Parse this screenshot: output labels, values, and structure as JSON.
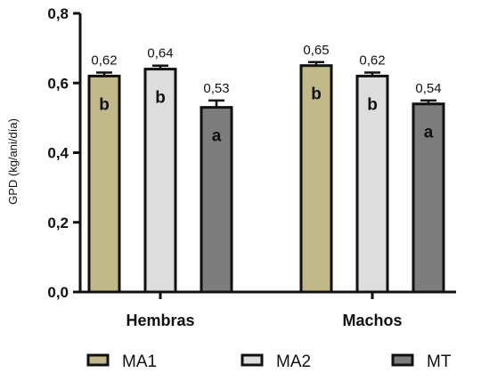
{
  "chart_data": {
    "type": "bar",
    "ylabel": "GPD (kg/ani/día)",
    "xlabel": "",
    "ylim": [
      0,
      0.8
    ],
    "yticks": [
      0,
      0.2,
      0.4,
      0.6,
      0.8
    ],
    "ytick_labels": [
      "0,0",
      "0,2",
      "0,4",
      "0,6",
      "0,8"
    ],
    "categories": [
      "Hembras",
      "Machos"
    ],
    "legend_position": "bottom",
    "grid": false,
    "series": [
      {
        "name": "MA1",
        "color": "#c2b98a",
        "values": [
          0.62,
          0.65
        ],
        "errors": [
          0.01,
          0.01
        ],
        "value_labels": [
          "0,62",
          "0,65"
        ],
        "letters": [
          "b",
          "b"
        ]
      },
      {
        "name": "MA2",
        "color": "#dddddd",
        "values": [
          0.64,
          0.62
        ],
        "errors": [
          0.01,
          0.01
        ],
        "value_labels": [
          "0,64",
          "0,62"
        ],
        "letters": [
          "b",
          "b"
        ]
      },
      {
        "name": "MT",
        "color": "#7d7d7d",
        "values": [
          0.53,
          0.54
        ],
        "errors": [
          0.02,
          0.01
        ],
        "value_labels": [
          "0,53",
          "0,54"
        ],
        "letters": [
          "a",
          "a"
        ]
      }
    ]
  }
}
